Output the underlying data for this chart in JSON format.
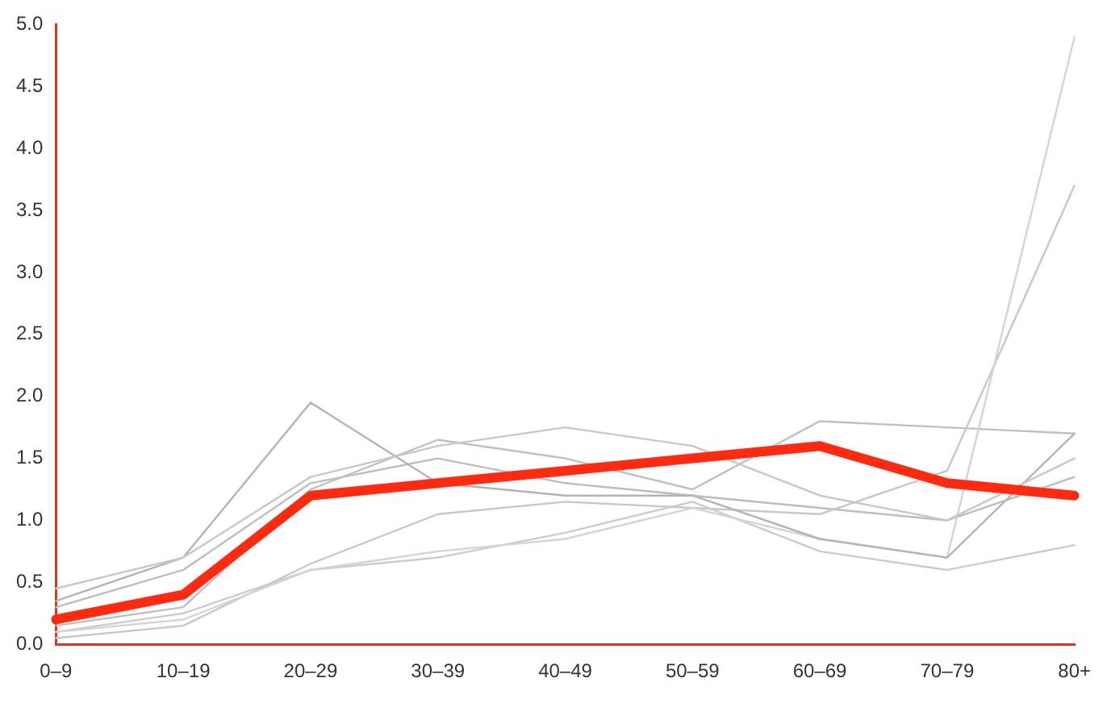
{
  "chart_data": {
    "type": "line",
    "categories": [
      "0–9",
      "10–19",
      "20–29",
      "30–39",
      "40–49",
      "50–59",
      "60–69",
      "70–79",
      "80+"
    ],
    "series": [
      {
        "color": "#ff2a10",
        "values": [
          0.2,
          0.4,
          1.2,
          1.3,
          1.4,
          1.5,
          1.6,
          1.3,
          1.2
        ]
      },
      {
        "color": "#c8c8c8",
        "values": [
          0.45,
          0.7,
          1.35,
          1.6,
          1.75,
          1.6,
          1.2,
          1.0,
          1.5
        ]
      },
      {
        "color": "#b4b4b4",
        "values": [
          0.35,
          0.7,
          1.95,
          1.3,
          1.2,
          1.2,
          0.85,
          0.7,
          1.7
        ]
      },
      {
        "color": "#d4d4d4",
        "values": [
          0.1,
          0.2,
          0.6,
          0.75,
          0.85,
          1.1,
          0.85,
          0.7,
          4.9
        ]
      },
      {
        "color": "#c8c8c8",
        "values": [
          0.05,
          0.15,
          0.65,
          1.05,
          1.15,
          1.1,
          1.05,
          1.4,
          3.7
        ]
      },
      {
        "color": "#c0c0c0",
        "values": [
          0.15,
          0.3,
          1.25,
          1.65,
          1.5,
          1.25,
          1.8,
          1.75,
          1.7
        ]
      },
      {
        "color": "#cccccc",
        "values": [
          0.1,
          0.25,
          0.6,
          0.7,
          0.9,
          1.15,
          0.75,
          0.6,
          0.8
        ]
      },
      {
        "color": "#bdbdbd",
        "values": [
          0.3,
          0.6,
          1.3,
          1.5,
          1.3,
          1.2,
          1.1,
          1.0,
          1.35
        ]
      }
    ],
    "ylim": [
      0,
      5
    ],
    "yticks": [
      {
        "value": 0,
        "label": "0.0"
      },
      {
        "value": 0.5,
        "label": "0.5"
      },
      {
        "value": 1,
        "label": "1.0"
      },
      {
        "value": 1.5,
        "label": "1.5"
      },
      {
        "value": 2,
        "label": "2.0"
      },
      {
        "value": 2.5,
        "label": "2.5"
      },
      {
        "value": 3,
        "label": "3.0"
      },
      {
        "value": 3.5,
        "label": "3.5"
      },
      {
        "value": 4,
        "label": "4.0"
      },
      {
        "value": 4.5,
        "label": "4.5"
      },
      {
        "value": 5,
        "label": "5.0"
      }
    ],
    "grid": false,
    "legend": false,
    "marker": "none",
    "line_style": "solid"
  }
}
